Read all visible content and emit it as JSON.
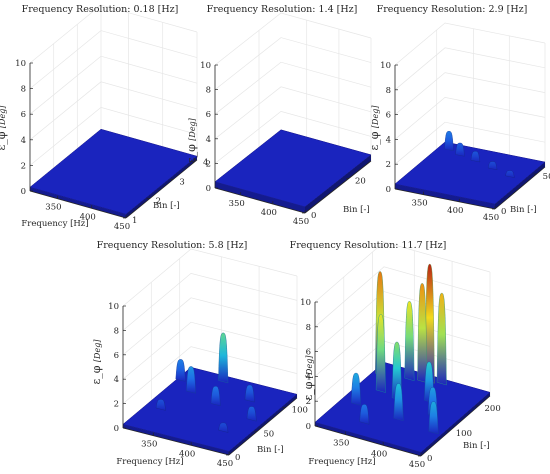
{
  "figure": {
    "background": "#ffffff",
    "axis_color": "#262626",
    "grid_color": "#e6e6e6",
    "colormap": [
      "#1a1ab8",
      "#1e6ee8",
      "#1ec8d8",
      "#8ee060",
      "#f2e41e",
      "#f08a10",
      "#b01414"
    ]
  },
  "chart_data": [
    {
      "type": "surface",
      "title": "Frequency Resolution: 0.18 [Hz]",
      "xlabel": "Frequency [Hz]",
      "ylabel": "Bin [-]",
      "zlabel": "ε_φ [Deg]",
      "xlim": [
        310,
        450
      ],
      "ylim": [
        1,
        4
      ],
      "zlim": [
        0,
        10
      ],
      "xticks": [
        350,
        400,
        450
      ],
      "yticks": [
        1,
        2,
        3,
        4
      ],
      "zticks": [
        0,
        2,
        4,
        6,
        8,
        10
      ],
      "grid": true,
      "surface_level": 0.3,
      "peaks": []
    },
    {
      "type": "surface",
      "title": "Frequency Resolution: 1.4 [Hz]",
      "xlabel": "",
      "ylabel": "Bin [-]",
      "zlabel": "ε_φ [Deg]",
      "xlim": [
        310,
        450
      ],
      "ylim": [
        0,
        30
      ],
      "zlim": [
        0,
        10
      ],
      "xticks": [
        350,
        400,
        450
      ],
      "yticks": [
        0,
        20
      ],
      "zticks": [
        0,
        2,
        4,
        6,
        8,
        10
      ],
      "grid": true,
      "surface_level": 0.5,
      "peaks": []
    },
    {
      "type": "surface",
      "title": "Frequency Resolution: 2.9 [Hz]",
      "xlabel": "",
      "ylabel": "Bin [-]",
      "zlabel": "ε_φ [Deg]",
      "xlim": [
        310,
        450
      ],
      "ylim": [
        0,
        60
      ],
      "zlim": [
        0,
        10
      ],
      "xticks": [
        350,
        400,
        450
      ],
      "yticks": [
        0,
        50
      ],
      "zticks": [
        0,
        2,
        4,
        6,
        8,
        10
      ],
      "grid": true,
      "surface_level": 0.4,
      "peaks": [
        {
          "x": 325,
          "y": 52,
          "z": 1.9
        },
        {
          "x": 345,
          "y": 48,
          "z": 1.4
        },
        {
          "x": 370,
          "y": 45,
          "z": 1.2
        },
        {
          "x": 400,
          "y": 40,
          "z": 1.0
        },
        {
          "x": 430,
          "y": 35,
          "z": 0.9
        }
      ]
    },
    {
      "type": "surface",
      "title": "Frequency Resolution: 5.8 [Hz]",
      "xlabel": "Frequency [Hz]",
      "ylabel": "Bin [-]",
      "zlabel": "ε_φ [Deg]",
      "xlim": [
        310,
        450
      ],
      "ylim": [
        0,
        120
      ],
      "zlim": [
        0,
        10
      ],
      "xticks": [
        350,
        400,
        450
      ],
      "yticks": [
        0,
        50,
        100
      ],
      "zticks": [
        0,
        2,
        4,
        6,
        8,
        10
      ],
      "grid": true,
      "surface_level": 0.3,
      "peaks": [
        {
          "x": 360,
          "y": 110,
          "z": 4.3
        },
        {
          "x": 315,
          "y": 95,
          "z": 2.0
        },
        {
          "x": 340,
          "y": 80,
          "z": 2.4
        },
        {
          "x": 380,
          "y": 70,
          "z": 1.8
        },
        {
          "x": 410,
          "y": 90,
          "z": 1.6
        },
        {
          "x": 435,
          "y": 60,
          "z": 1.4
        },
        {
          "x": 330,
          "y": 40,
          "z": 1.1
        },
        {
          "x": 420,
          "y": 30,
          "z": 1.0
        }
      ]
    },
    {
      "type": "surface",
      "title": "Frequency Resolution: 11.7 [Hz]",
      "xlabel": "Frequency [Hz]",
      "ylabel": "Bin [-]",
      "zlabel": "ε_φ [Deg]",
      "xlim": [
        310,
        450
      ],
      "ylim": [
        0,
        240
      ],
      "zlim": [
        0,
        10
      ],
      "xticks": [
        350,
        400,
        450
      ],
      "yticks": [
        0,
        100,
        200
      ],
      "zticks": [
        0,
        2,
        4,
        6,
        8,
        10
      ],
      "grid": true,
      "surface_level": 0.3,
      "peaks": [
        {
          "x": 320,
          "y": 200,
          "z": 8.6
        },
        {
          "x": 355,
          "y": 210,
          "z": 6.6
        },
        {
          "x": 370,
          "y": 215,
          "z": 8.2
        },
        {
          "x": 378,
          "y": 220,
          "z": 9.8
        },
        {
          "x": 392,
          "y": 225,
          "z": 7.6
        },
        {
          "x": 340,
          "y": 150,
          "z": 6.5
        },
        {
          "x": 365,
          "y": 140,
          "z": 4.9
        },
        {
          "x": 400,
          "y": 160,
          "z": 3.5
        },
        {
          "x": 420,
          "y": 120,
          "z": 2.6
        },
        {
          "x": 330,
          "y": 90,
          "z": 2.8
        },
        {
          "x": 390,
          "y": 80,
          "z": 3.2
        },
        {
          "x": 440,
          "y": 70,
          "z": 2.8
        },
        {
          "x": 360,
          "y": 40,
          "z": 1.8
        }
      ]
    }
  ]
}
